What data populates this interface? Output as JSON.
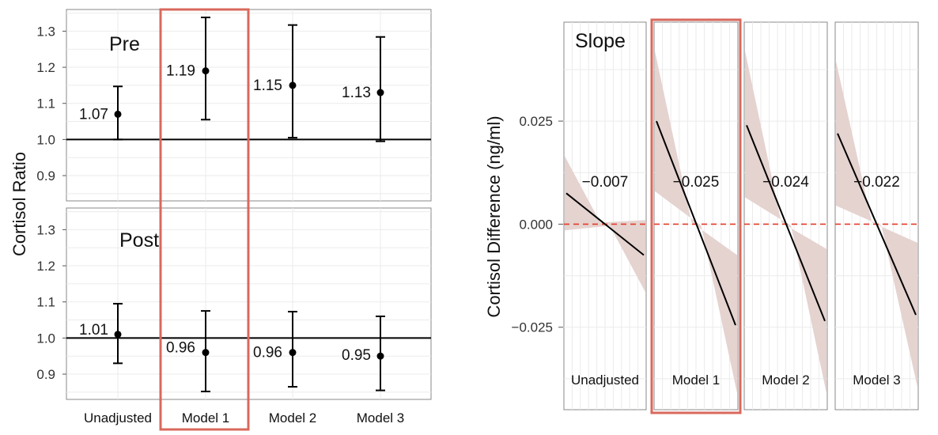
{
  "chart_data": [
    {
      "type": "scatter",
      "variant": "point-with-error-bars",
      "ylabel": "Cortisol Ratio",
      "categories": [
        "Unadjusted",
        "Model 1",
        "Model 2",
        "Model 3"
      ],
      "highlight_category": "Model 1",
      "ylim": [
        0.83,
        1.36
      ],
      "yticks": [
        "0.9",
        "1.0",
        "1.1",
        "1.2",
        "1.3"
      ],
      "reference_line": 1.0,
      "colors": {
        "point": "#000000",
        "frame": "#888888",
        "highlight": "#d9685c",
        "grid": "#ebebeb"
      },
      "panels": [
        {
          "label": "Pre",
          "estimates": [
            1.07,
            1.19,
            1.15,
            1.13
          ],
          "estimate_labels": [
            "1.07",
            "1.19",
            "1.15",
            "1.13"
          ],
          "lower": [
            1.0,
            1.055,
            1.005,
            0.995
          ],
          "upper": [
            1.147,
            1.338,
            1.317,
            1.284
          ]
        },
        {
          "label": "Post",
          "estimates": [
            1.01,
            0.96,
            0.96,
            0.95
          ],
          "estimate_labels": [
            "1.01",
            "0.96",
            "0.96",
            "0.95"
          ],
          "lower": [
            0.93,
            0.852,
            0.865,
            0.855
          ],
          "upper": [
            1.095,
            1.075,
            1.073,
            1.06
          ]
        }
      ]
    },
    {
      "type": "line",
      "variant": "slope-with-confidence-band",
      "panel_label": "Slope",
      "ylabel": "Cortisol Difference (ng/ml)",
      "ylim": [
        -0.045,
        0.049
      ],
      "yticks": [
        "0.025",
        "0.000",
        "−0.025"
      ],
      "reference_line": 0.0,
      "highlight_category": "Model 1",
      "colors": {
        "line": "#000000",
        "band": "#e5d3d0",
        "reference": "#e23c2a",
        "frame": "#888888",
        "highlight": "#d9685c",
        "grid": "#ebebeb"
      },
      "panels": [
        {
          "name": "Unadjusted",
          "slope_label": "−0.007",
          "line": [
            0.0075,
            -0.0075
          ],
          "band_upper": [
            0.0165,
            0.001
          ],
          "band_lower": [
            -0.0015,
            -0.0165
          ]
        },
        {
          "name": "Model 1",
          "slope_label": "−0.025",
          "line": [
            0.025,
            -0.0245
          ],
          "band_upper": [
            0.042,
            -0.0075
          ],
          "band_lower": [
            0.008,
            -0.041
          ]
        },
        {
          "name": "Model 2",
          "slope_label": "−0.024",
          "line": [
            0.024,
            -0.0235
          ],
          "band_upper": [
            0.042,
            -0.006
          ],
          "band_lower": [
            0.0065,
            -0.041
          ]
        },
        {
          "name": "Model 3",
          "slope_label": "−0.022",
          "line": [
            0.022,
            -0.022
          ],
          "band_upper": [
            0.0395,
            -0.0045
          ],
          "band_lower": [
            0.0045,
            -0.0395
          ]
        }
      ]
    }
  ]
}
